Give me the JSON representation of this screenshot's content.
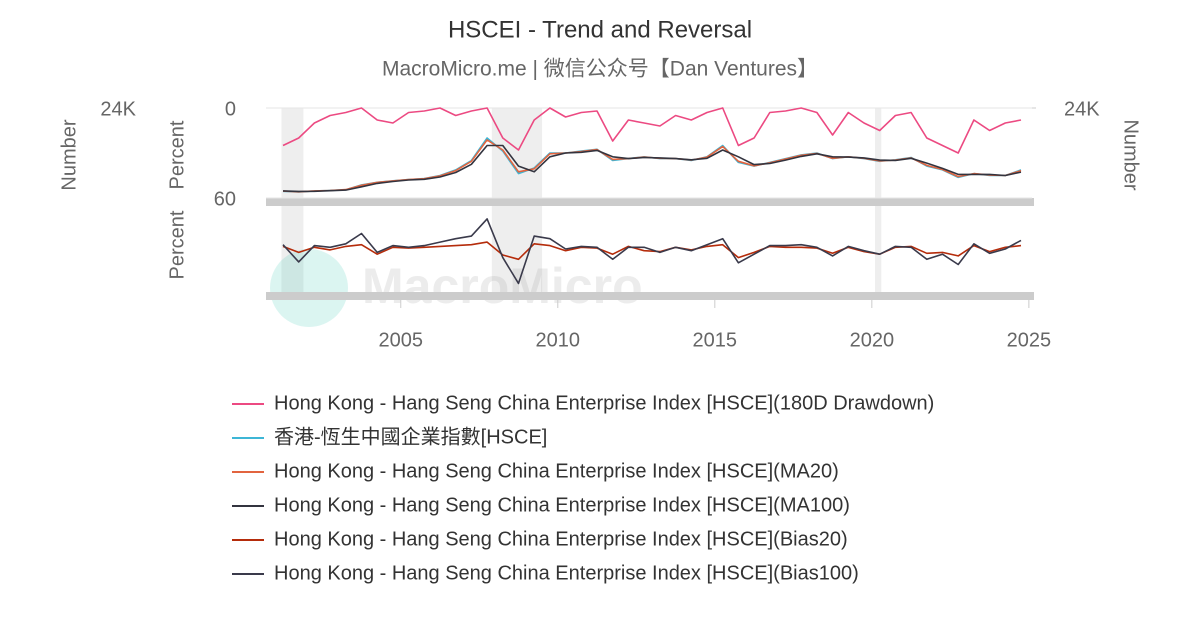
{
  "chart_data": {
    "type": "line",
    "title": "HSCEI - Trend and Reversal",
    "subtitle": "MacroMicro.me | 微信公众号【Dan Ventures】",
    "watermark": "MacroMicro",
    "axis_titles": {
      "left_number": "Number",
      "top_percent": "Percent",
      "bottom_percent": "Percent",
      "right_number": "Number"
    },
    "xlim": [
      2000.9,
      2025.1
    ],
    "xticks": [
      2005,
      2010,
      2015,
      2020,
      2025
    ],
    "ylim": [
      60,
      0
    ],
    "yticks": [
      0,
      60
    ],
    "y2lim": [
      0,
      24000
    ],
    "y2ticks": [
      {
        "value": 24000,
        "label": "24K"
      }
    ],
    "y3lim": [
      -50,
      50
    ],
    "shaded_ranges": [
      [
        2001.2,
        2001.9
      ],
      [
        2007.9,
        2009.5
      ],
      [
        2020.1,
        2020.3
      ]
    ],
    "x": [
      2001.25,
      2001.75,
      2002.25,
      2002.75,
      2003.25,
      2003.75,
      2004.25,
      2004.75,
      2005.25,
      2005.75,
      2006.25,
      2006.75,
      2007.25,
      2007.75,
      2008.25,
      2008.75,
      2009.25,
      2009.75,
      2010.25,
      2010.75,
      2011.25,
      2011.75,
      2012.25,
      2012.75,
      2013.25,
      2013.75,
      2014.25,
      2014.75,
      2015.25,
      2015.75,
      2016.25,
      2016.75,
      2017.25,
      2017.75,
      2018.25,
      2018.75,
      2019.25,
      2019.75,
      2020.25,
      2020.75,
      2021.25,
      2021.75,
      2022.25,
      2022.75,
      2023.25,
      2023.75,
      2024.25,
      2024.75
    ],
    "series": [
      {
        "name": "Hong Kong - Hang Seng China Enterprise Index [HSCE](180D Drawdown)",
        "color": "#ec4a82",
        "panel": 1,
        "axis": "y",
        "values": [
          25,
          20,
          10,
          5,
          3,
          0,
          8,
          10,
          3,
          2,
          0,
          5,
          2,
          0,
          20,
          28,
          8,
          0,
          6,
          3,
          2,
          22,
          8,
          10,
          12,
          5,
          8,
          3,
          0,
          25,
          20,
          3,
          2,
          0,
          3,
          18,
          3,
          10,
          15,
          5,
          3,
          20,
          25,
          30,
          8,
          15,
          10,
          8
        ]
      },
      {
        "name": "香港-恆生中國企業指數[HSCE]",
        "color": "#3db6d6",
        "panel": 1,
        "axis": "y2",
        "values": [
          1800,
          1600,
          1900,
          2000,
          2200,
          3500,
          4200,
          4600,
          4900,
          5200,
          6000,
          7500,
          10000,
          16000,
          12500,
          6500,
          8000,
          12000,
          12000,
          12500,
          13000,
          10000,
          10500,
          11000,
          10500,
          10500,
          10000,
          11000,
          14000,
          9500,
          8500,
          9500,
          10500,
          11500,
          12000,
          10500,
          11000,
          10500,
          9800,
          10200,
          10800,
          8500,
          7500,
          5500,
          6500,
          6000,
          6000,
          7500
        ]
      },
      {
        "name": "Hong Kong - Hang Seng China Enterprise Index [HSCE](MA20)",
        "color": "#e2643f",
        "panel": 1,
        "axis": "y2",
        "values": [
          1850,
          1650,
          1880,
          2000,
          2250,
          3400,
          4150,
          4550,
          4900,
          5150,
          5900,
          7300,
          9800,
          15500,
          12800,
          7000,
          7800,
          11800,
          12000,
          12400,
          12900,
          10300,
          10500,
          10900,
          10600,
          10500,
          10100,
          10900,
          13700,
          9800,
          8600,
          9400,
          10400,
          11400,
          11900,
          10600,
          11000,
          10600,
          9900,
          10100,
          10700,
          8700,
          7600,
          5700,
          6500,
          6100,
          6000,
          7300
        ]
      },
      {
        "name": "Hong Kong - Hang Seng China Enterprise Index [HSCE](MA100)",
        "color": "#33343f",
        "panel": 1,
        "axis": "y2",
        "values": [
          1900,
          1750,
          1800,
          1950,
          2100,
          3000,
          3900,
          4400,
          4800,
          5000,
          5600,
          6800,
          9000,
          14000,
          14000,
          8500,
          7000,
          11000,
          12000,
          12200,
          12700,
          11000,
          10500,
          10800,
          10700,
          10500,
          10200,
          10600,
          12800,
          11000,
          8900,
          9200,
          10100,
          11100,
          11800,
          11000,
          10900,
          10700,
          10100,
          10000,
          10600,
          9300,
          7900,
          6300,
          6300,
          6300,
          6000,
          6900
        ]
      },
      {
        "name": "Hong Kong - Hang Seng China Enterprise Index [HSCE](Bias20)",
        "color": "#b52c0b",
        "panel": 2,
        "axis": "y3",
        "values": [
          3,
          -4,
          2,
          -1,
          3,
          5,
          -6,
          2,
          1,
          2,
          3,
          4,
          5,
          8,
          -7,
          -12,
          6,
          4,
          -2,
          2,
          1,
          -6,
          3,
          -2,
          -3,
          2,
          -1,
          3,
          5,
          -10,
          -4,
          3,
          2,
          2,
          1,
          -5,
          2,
          -3,
          -6,
          2,
          3,
          -5,
          -4,
          -8,
          4,
          -3,
          2,
          4
        ]
      },
      {
        "name": "Hong Kong - Hang Seng China Enterprise Index [HSCE](Bias100)",
        "color": "#3a3a4b",
        "panel": 2,
        "axis": "y3",
        "values": [
          5,
          -15,
          4,
          2,
          6,
          18,
          -4,
          4,
          2,
          4,
          8,
          12,
          15,
          35,
          -10,
          -40,
          15,
          12,
          0,
          3,
          2,
          -12,
          2,
          2,
          -4,
          2,
          -2,
          5,
          12,
          -16,
          -6,
          4,
          4,
          5,
          2,
          -8,
          3,
          -2,
          -6,
          3,
          2,
          -12,
          -6,
          -18,
          6,
          -5,
          0,
          10
        ]
      }
    ]
  }
}
